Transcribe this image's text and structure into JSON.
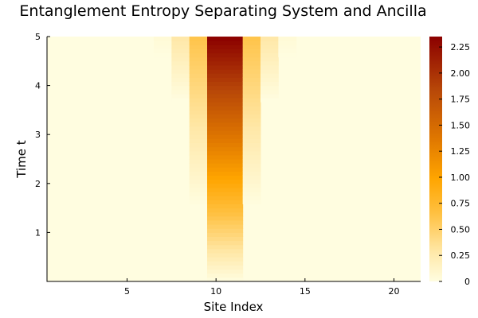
{
  "chart_data": {
    "type": "heatmap",
    "title": "Entanglement Entropy Separating System and Ancilla",
    "xlabel": "Site Index",
    "ylabel": "Time t",
    "x_range": [
      0.5,
      21.5
    ],
    "y_range": [
      0,
      5
    ],
    "x_ticks": [
      5,
      10,
      15,
      20
    ],
    "y_ticks": [
      1,
      2,
      3,
      4,
      5
    ],
    "colorbar": {
      "range": [
        0,
        2.35
      ],
      "ticks": [
        "0",
        "0.25",
        "0.50",
        "0.75",
        "1.00",
        "1.25",
        "1.50",
        "1.75",
        "2.00",
        "2.25"
      ],
      "colormap": "heat",
      "stops": [
        "#fffde0",
        "#ffe8a8",
        "#ffc040",
        "#ffa500",
        "#e07800",
        "#b84808",
        "#8b0000"
      ]
    },
    "description_of_data": "Entropy per site (columns 1-21) over time 0-5, symmetric around sites 10-11",
    "grid": false,
    "columns": [
      {
        "site": 7,
        "start_t": 4.6,
        "growth": 0.12
      },
      {
        "site": 8,
        "start_t": 3.7,
        "growth": 0.22
      },
      {
        "site": 9,
        "start_t": 1.55,
        "growth": 0.18
      },
      {
        "site": 10,
        "start_t": 0.0,
        "growth": 0.47
      },
      {
        "site": 11,
        "start_t": 0.0,
        "growth": 0.47
      },
      {
        "site": 12,
        "start_t": 1.55,
        "growth": 0.18
      },
      {
        "site": 13,
        "start_t": 3.7,
        "growth": 0.22
      },
      {
        "site": 14,
        "start_t": 4.6,
        "growth": 0.12
      }
    ]
  }
}
